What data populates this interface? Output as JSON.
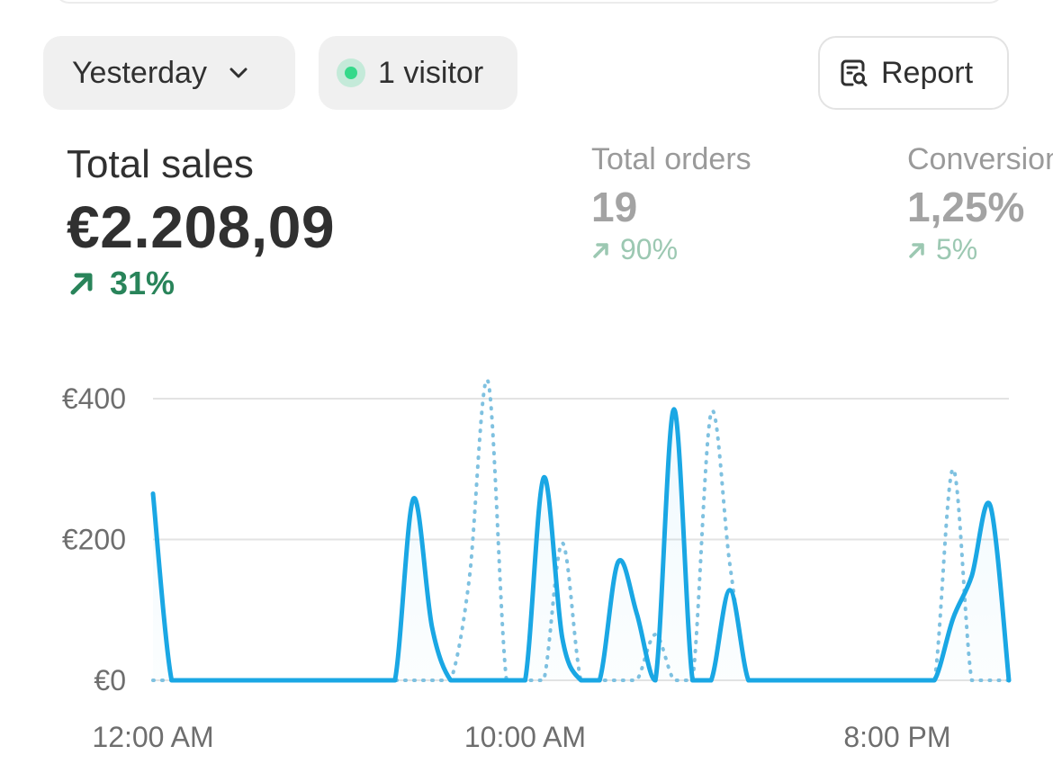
{
  "filters": {
    "date_label": "Yesterday",
    "visitors_label": "1 visitor",
    "report_label": "Report"
  },
  "metrics": {
    "total_sales": {
      "label": "Total sales",
      "value": "€2.208,09",
      "change": "31%"
    },
    "total_orders": {
      "label": "Total orders",
      "value": "19",
      "change": "90%"
    },
    "conversion": {
      "label": "Conversion",
      "value": "1,25%",
      "change": "5%"
    }
  },
  "colors": {
    "primary_series": "#1aa7e4",
    "comparison_series": "#7fc1e0",
    "positive_change": "#29845a",
    "visitor_dot": "#35d98a"
  },
  "chart_data": {
    "type": "line",
    "x": [
      0,
      0.5,
      1,
      1.5,
      2,
      2.5,
      3,
      3.5,
      4,
      4.5,
      5,
      5.5,
      6,
      6.5,
      7,
      7.5,
      8,
      8.5,
      9,
      9.5,
      10,
      10.5,
      11,
      11.5,
      12,
      12.5,
      13,
      13.5,
      14,
      14.5,
      15,
      15.5,
      16,
      16.5,
      17,
      17.5,
      18,
      18.5,
      19,
      19.5,
      20,
      20.5,
      21,
      21.5,
      22,
      22.5,
      23
    ],
    "series": [
      {
        "values": [
          265,
          0,
          0,
          0,
          0,
          0,
          0,
          0,
          0,
          0,
          0,
          0,
          0,
          0,
          258,
          75,
          0,
          0,
          0,
          0,
          0,
          288,
          60,
          0,
          0,
          168,
          95,
          0,
          385,
          0,
          0,
          128,
          0,
          0,
          0,
          0,
          0,
          0,
          0,
          0,
          0,
          0,
          0,
          88,
          148,
          248,
          0
        ]
      },
      {
        "values": [
          0,
          0,
          0,
          0,
          0,
          0,
          0,
          0,
          0,
          0,
          0,
          0,
          0,
          0,
          0,
          0,
          0,
          145,
          425,
          0,
          0,
          0,
          195,
          0,
          0,
          0,
          0,
          65,
          0,
          0,
          380,
          165,
          0,
          0,
          0,
          0,
          0,
          0,
          0,
          0,
          0,
          0,
          0,
          300,
          0,
          0,
          0
        ]
      }
    ],
    "y_ticks": [
      "€400",
      "€200",
      "€0"
    ],
    "x_tick_labels": [
      "12:00 AM",
      "10:00 AM",
      "8:00 PM"
    ],
    "x_tick_positions": [
      0,
      10,
      20
    ],
    "xlim": [
      0,
      23
    ],
    "ylim": [
      0,
      400
    ],
    "grid": true,
    "legend": "none"
  }
}
